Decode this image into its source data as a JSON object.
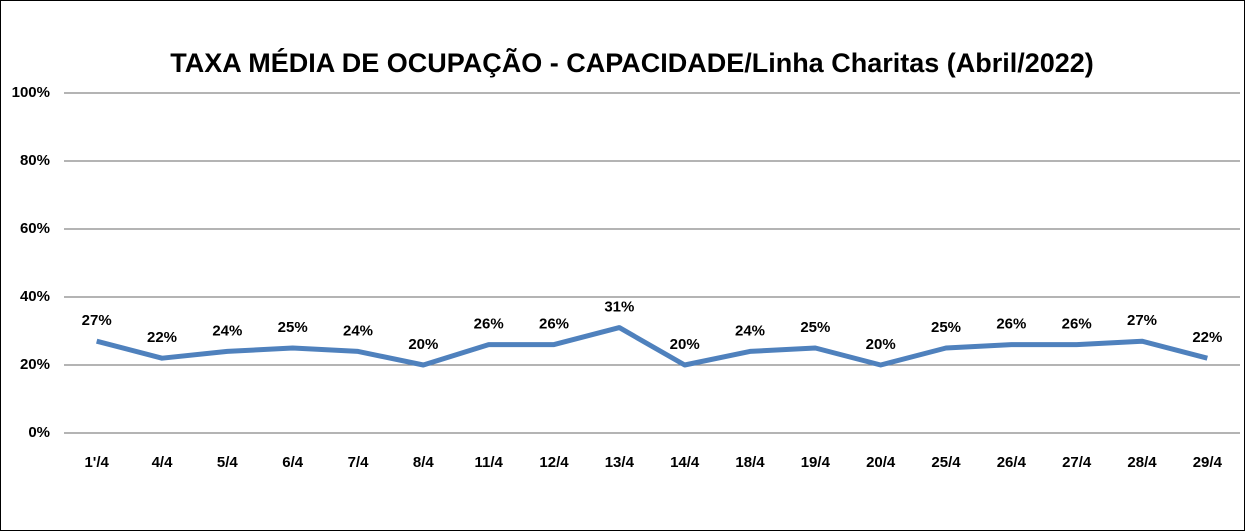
{
  "chart_data": {
    "type": "line",
    "title": "TAXA MÉDIA DE OCUPAÇÃO - CAPACIDADE/Linha Charitas (Abril/2022)",
    "categories": [
      "1'/4",
      "4/4",
      "5/4",
      "6/4",
      "7/4",
      "8/4",
      "11/4",
      "12/4",
      "13/4",
      "14/4",
      "18/4",
      "19/4",
      "20/4",
      "25/4",
      "26/4",
      "27/4",
      "28/4",
      "29/4"
    ],
    "values": [
      27,
      22,
      24,
      25,
      24,
      20,
      26,
      26,
      31,
      20,
      24,
      25,
      20,
      25,
      26,
      26,
      27,
      22
    ],
    "value_labels": [
      "27%",
      "22%",
      "24%",
      "25%",
      "24%",
      "20%",
      "26%",
      "26%",
      "31%",
      "20%",
      "24%",
      "25%",
      "20%",
      "25%",
      "26%",
      "26%",
      "27%",
      "22%"
    ],
    "color": "#4f81bd",
    "ylim": [
      0,
      100
    ],
    "yticks": [
      {
        "value": 0,
        "label": "0%"
      },
      {
        "value": 20,
        "label": "20%"
      },
      {
        "value": 40,
        "label": "40%"
      },
      {
        "value": 60,
        "label": "60%"
      },
      {
        "value": 80,
        "label": "80%"
      },
      {
        "value": 100,
        "label": "100%"
      }
    ],
    "grid": true
  }
}
